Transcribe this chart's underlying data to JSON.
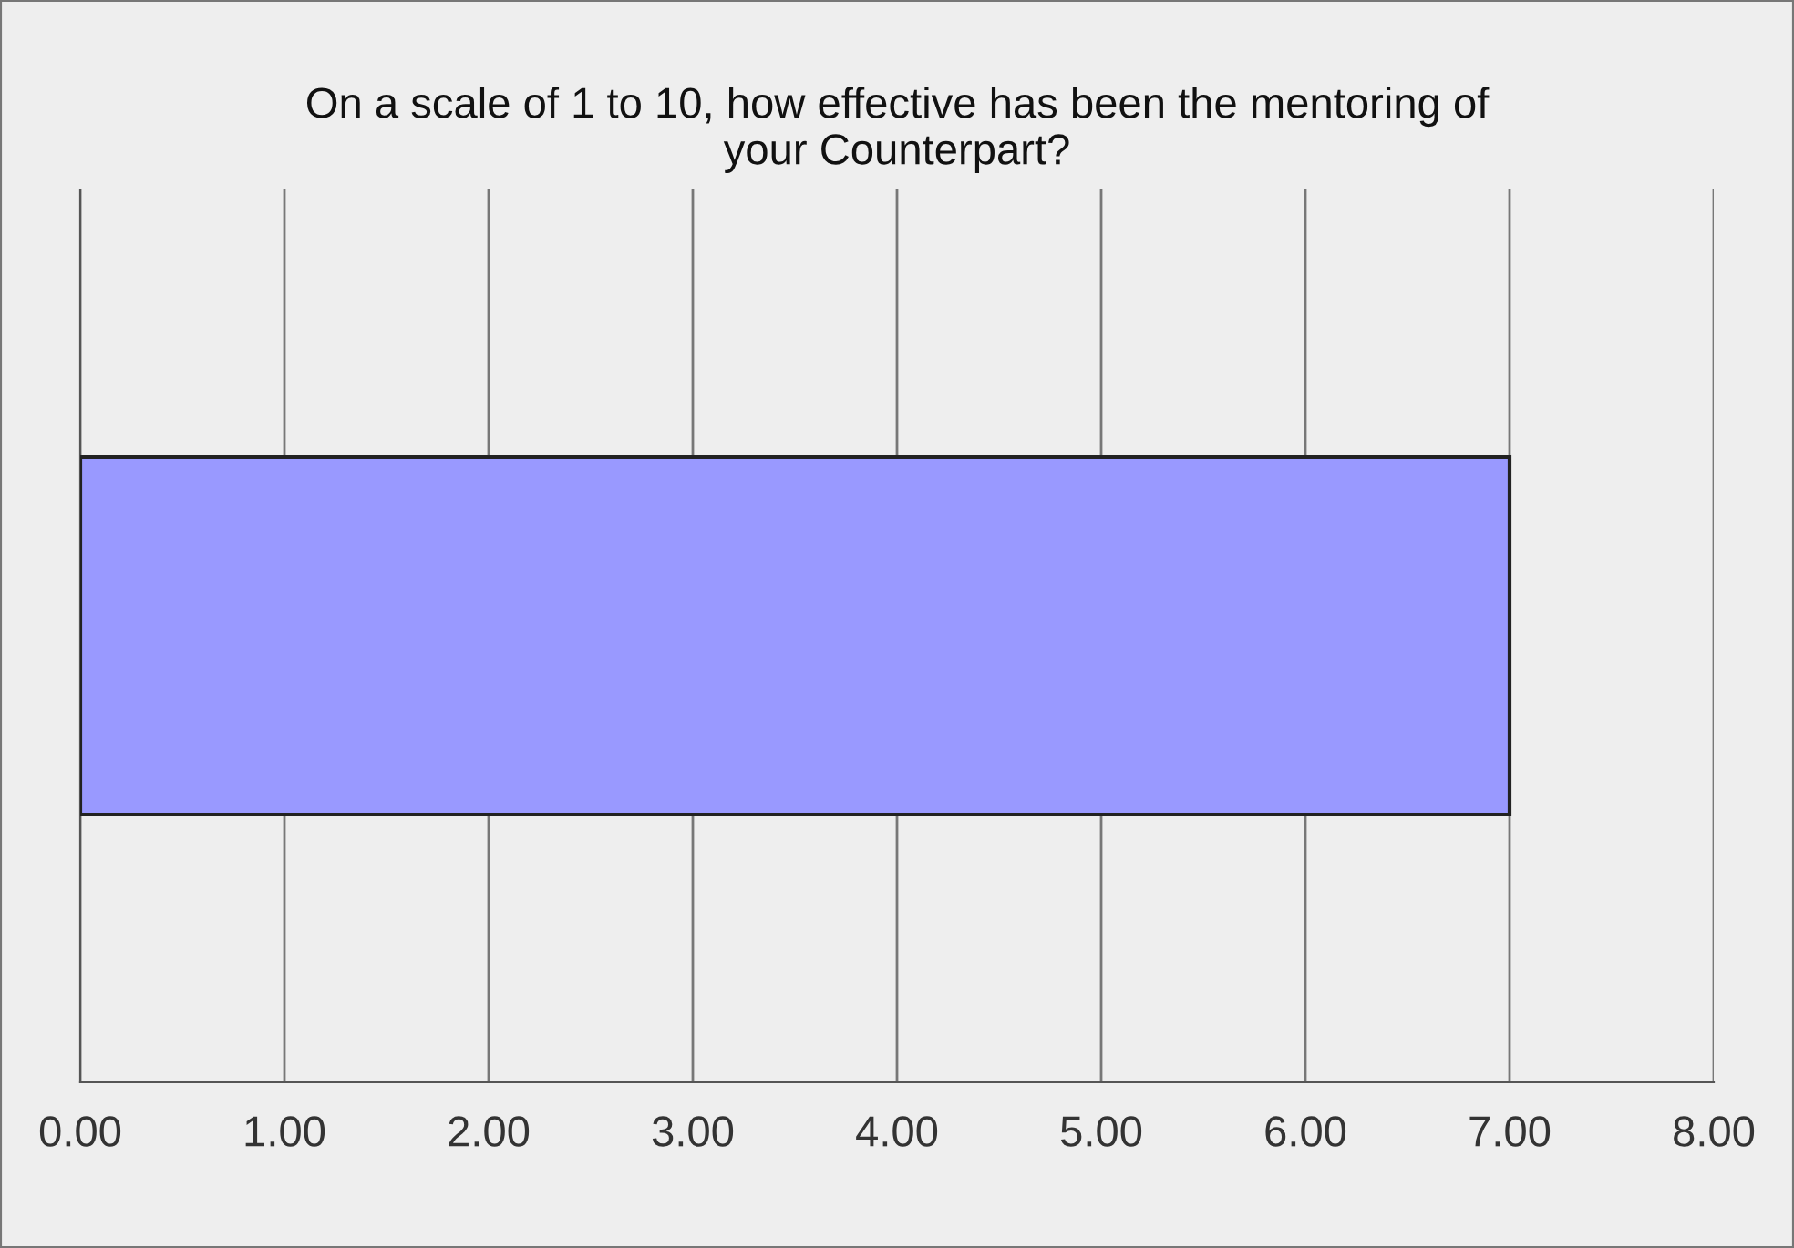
{
  "chart_data": {
    "type": "bar",
    "orientation": "horizontal",
    "title": "On a scale of 1 to 10, how effective has been the mentoring of\nyour Counterpart?",
    "categories": [
      null
    ],
    "values": [
      7.0
    ],
    "color": "#9999ff",
    "xlim": [
      0,
      8
    ],
    "xticks": [
      {
        "value": 0,
        "label": "0.00"
      },
      {
        "value": 1,
        "label": "1.00"
      },
      {
        "value": 2,
        "label": "2.00"
      },
      {
        "value": 3,
        "label": "3.00"
      },
      {
        "value": 4,
        "label": "4.00"
      },
      {
        "value": 5,
        "label": "5.00"
      },
      {
        "value": 6,
        "label": "6.00"
      },
      {
        "value": 7,
        "label": "7.00"
      },
      {
        "value": 8,
        "label": "8.00"
      }
    ],
    "grid": "x",
    "tick_labels": "x"
  }
}
